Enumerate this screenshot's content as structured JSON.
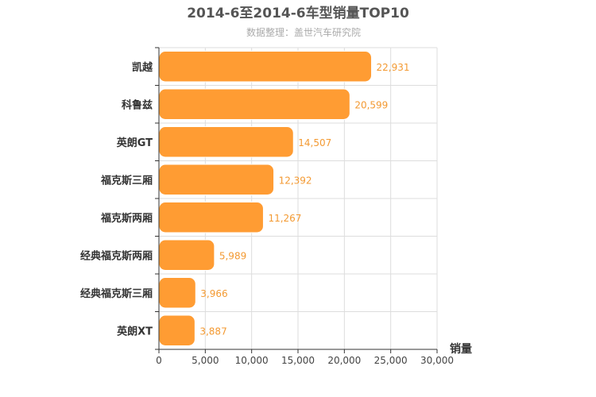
{
  "chart_data": {
    "type": "bar",
    "orientation": "horizontal",
    "title": "2014-6至2014-6车型销量TOP10",
    "subtitle": "数据整理：盖世汽车研究院",
    "xlabel": "销量",
    "ylabel": "",
    "categories": [
      "凯越",
      "科鲁兹",
      "英朗GT",
      "福克斯三厢",
      "福克斯两厢",
      "经典福克斯两厢",
      "经典福克斯三厢",
      "英朗XT"
    ],
    "values": [
      22931,
      20599,
      14507,
      12392,
      11267,
      5989,
      3966,
      3887
    ],
    "value_labels": [
      "22,931",
      "20,599",
      "14,507",
      "12,392",
      "11,267",
      "5,989",
      "3,966",
      "3,887"
    ],
    "xlim": [
      0,
      30000
    ],
    "ticks": [
      0,
      5000,
      10000,
      15000,
      20000,
      25000,
      30000
    ],
    "tick_labels": [
      "0",
      "5,000",
      "10,000",
      "15,000",
      "20,000",
      "25,000",
      "30,000"
    ],
    "grid": true,
    "legend": "none",
    "colors": {
      "bar": "#ff9c33",
      "bar_stroke": "#ffffff",
      "data_label": "#f39a33"
    }
  }
}
